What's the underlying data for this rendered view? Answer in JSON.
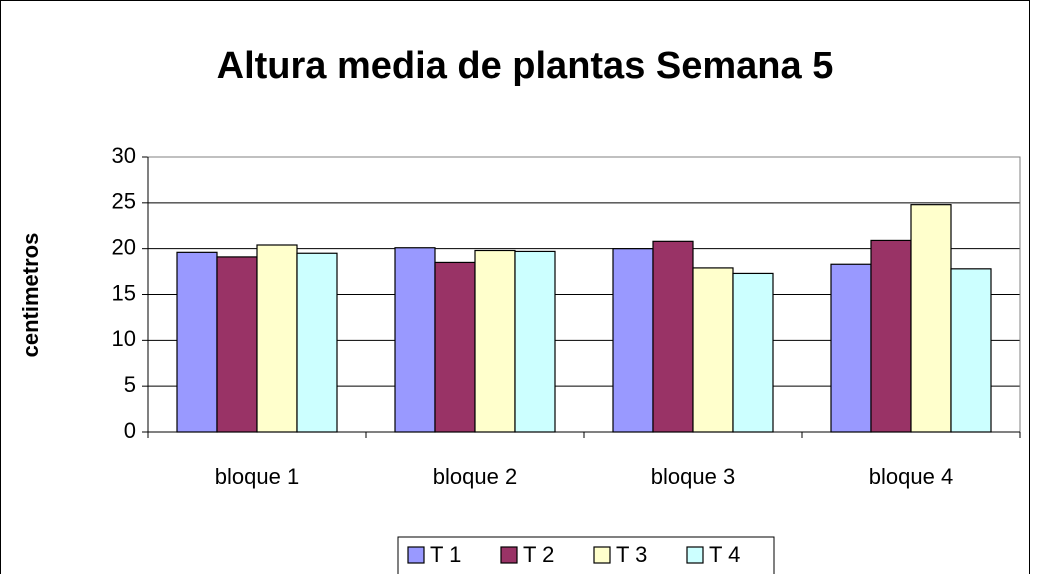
{
  "chart_data": {
    "type": "bar",
    "title": "Altura media de plantas Semana 5",
    "y_label": "centimetros",
    "categories": [
      "bloque 1",
      "bloque 2",
      "bloque 3",
      "bloque 4"
    ],
    "series": [
      {
        "name": "T 1",
        "color": "#9999ff",
        "values": [
          19.6,
          20.1,
          20.0,
          18.3
        ]
      },
      {
        "name": "T 2",
        "color": "#993366",
        "values": [
          19.1,
          18.5,
          20.8,
          20.9
        ]
      },
      {
        "name": "T 3",
        "color": "#ffffcc",
        "values": [
          20.4,
          19.8,
          17.9,
          24.8
        ]
      },
      {
        "name": "T 4",
        "color": "#ccffff",
        "values": [
          19.5,
          19.7,
          17.3,
          17.8
        ]
      }
    ],
    "ylim": [
      0,
      30
    ],
    "yticks": [
      0,
      5,
      10,
      15,
      20,
      25,
      30
    ],
    "grid": true,
    "legend": "bottom"
  }
}
